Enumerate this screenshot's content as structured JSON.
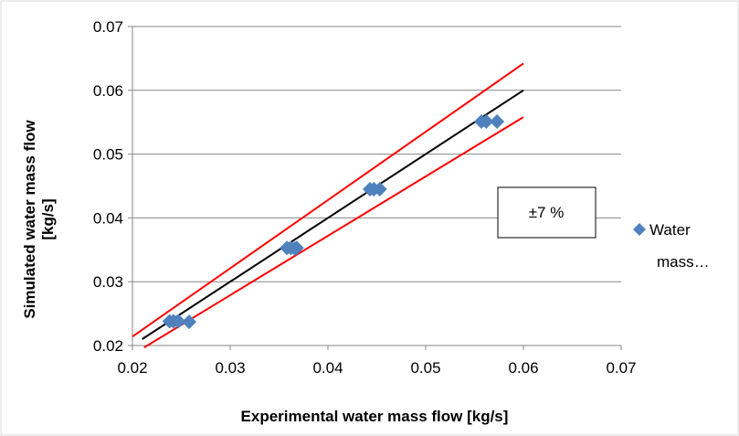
{
  "chart_data": {
    "type": "scatter",
    "xlabel": "Experimental water mass flow [kg/s]",
    "ylabel_lines": [
      "Simulated water mass flow",
      "[kg/s]"
    ],
    "xlim": [
      0.02,
      0.07
    ],
    "ylim": [
      0.02,
      0.07
    ],
    "x_ticks": [
      "0.02",
      "0.03",
      "0.04",
      "0.05",
      "0.06",
      "0.07"
    ],
    "y_ticks": [
      "0.02",
      "0.03",
      "0.04",
      "0.05",
      "0.06",
      "0.07"
    ],
    "grid": "horizontal",
    "legend_position": "right",
    "series": [
      {
        "name_lines": [
          "Water",
          "mass…"
        ],
        "color": "#4F81BD",
        "marker": "diamond",
        "points": [
          [
            0.0238,
            0.0238
          ],
          [
            0.0242,
            0.0238
          ],
          [
            0.0247,
            0.0238
          ],
          [
            0.0258,
            0.0237
          ],
          [
            0.0358,
            0.0353
          ],
          [
            0.0362,
            0.0353
          ],
          [
            0.0366,
            0.0352
          ],
          [
            0.0368,
            0.0353
          ],
          [
            0.0443,
            0.0445
          ],
          [
            0.0447,
            0.0445
          ],
          [
            0.0453,
            0.0445
          ],
          [
            0.0557,
            0.0551
          ],
          [
            0.0562,
            0.0551
          ],
          [
            0.0573,
            0.0551
          ]
        ]
      }
    ],
    "reference_lines": [
      {
        "role": "identity",
        "color": "#000000",
        "x": [
          0.021,
          0.06
        ],
        "y": [
          0.021,
          0.06
        ]
      },
      {
        "role": "upper-7pct",
        "color": "#ff0000",
        "x": [
          0.02,
          0.06
        ],
        "y": [
          0.0214,
          0.0642
        ]
      },
      {
        "role": "lower-7pct",
        "color": "#ff0000",
        "x": [
          0.0212,
          0.06
        ],
        "y": [
          0.0197,
          0.0558
        ]
      }
    ],
    "annotation": "±7 %"
  }
}
